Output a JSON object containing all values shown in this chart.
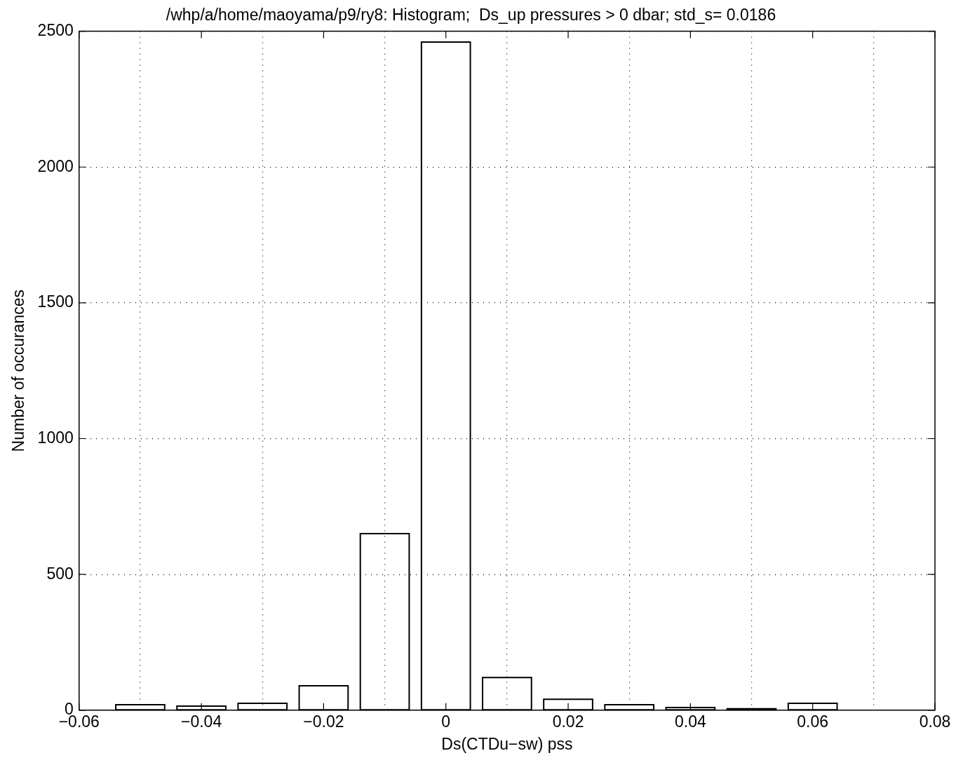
{
  "chart_data": {
    "type": "histogram",
    "title": "/whp/a/home/maoyama/p9/ry8: Histogram;  Ds_up pressures > 0 dbar; std_s= 0.0186",
    "xlabel": "Ds(CTDu−sw) pss",
    "ylabel": "Number of occurances",
    "bins": [
      -0.055,
      -0.045,
      -0.035,
      -0.025,
      -0.015,
      -0.005,
      0.005,
      0.015,
      0.025,
      0.035,
      0.045,
      0.055,
      0.065
    ],
    "values": [
      20,
      15,
      25,
      90,
      650,
      2460,
      120,
      40,
      20,
      10,
      5,
      25
    ],
    "color": "#000000",
    "xlim": [
      -0.06,
      0.08
    ],
    "xticks": [
      {
        "value": -0.06,
        "label": "−0.06"
      },
      {
        "value": -0.04,
        "label": "−0.04"
      },
      {
        "value": -0.02,
        "label": "−0.02"
      },
      0,
      0.02,
      0.04,
      0.06,
      0.08
    ],
    "ylim": [
      0,
      2500
    ],
    "yticks": [
      0,
      500,
      1000,
      1500,
      2000,
      2500
    ],
    "grid": true,
    "legend": false
  }
}
